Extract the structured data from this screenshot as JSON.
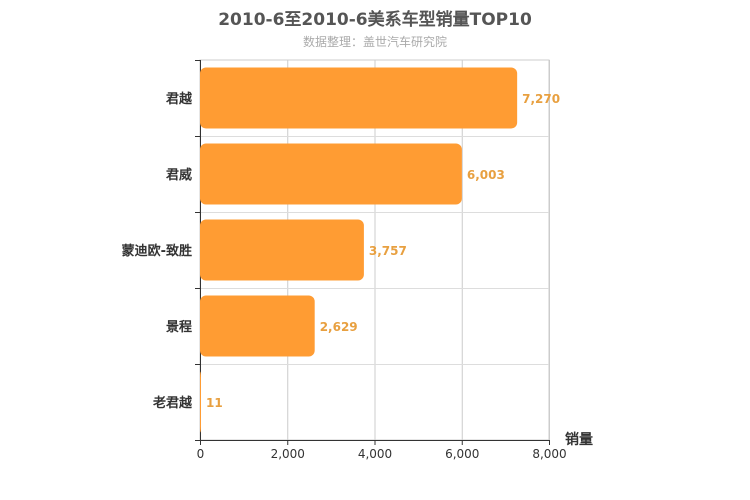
{
  "chart_data": {
    "type": "bar",
    "orientation": "horizontal",
    "title": "2010-6至2010-6美系车型销量TOP10",
    "subtitle": "数据整理：盖世汽车研究院",
    "xlabel": "销量",
    "ylabel": "",
    "categories": [
      "君越",
      "君威",
      "蒙迪欧-致胜",
      "景程",
      "老君越"
    ],
    "values": [
      7270,
      6003,
      3757,
      2629,
      11
    ],
    "value_labels": [
      "7,270",
      "6,003",
      "3,757",
      "2,629",
      "11"
    ],
    "xlim": [
      0,
      8000
    ],
    "x_ticks": [
      0,
      2000,
      4000,
      6000,
      8000
    ],
    "x_tick_labels": [
      "0",
      "2,000",
      "4,000",
      "6,000",
      "8,000"
    ],
    "grid": true,
    "bar_color": "#ff9c33",
    "label_color": "#e8a040"
  }
}
